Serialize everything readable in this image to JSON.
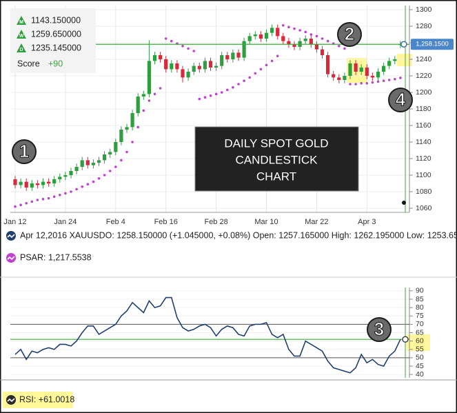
{
  "chart_data": [
    {
      "type": "candlestick",
      "categories": [
        "Jan 12",
        null,
        null,
        null,
        null,
        null,
        null,
        null,
        null,
        "Jan 24",
        null,
        null,
        null,
        null,
        null,
        null,
        null,
        null,
        "Feb 4",
        null,
        null,
        null,
        null,
        null,
        null,
        null,
        null,
        "Feb 16",
        null,
        null,
        null,
        null,
        null,
        null,
        null,
        null,
        "Feb 28",
        null,
        null,
        null,
        null,
        null,
        null,
        null,
        null,
        "Mar 10",
        null,
        null,
        null,
        null,
        null,
        null,
        null,
        null,
        "Mar 22",
        null,
        null,
        null,
        null,
        null,
        null,
        null,
        null,
        "Apr 3",
        null,
        null,
        null,
        null,
        null,
        null
      ],
      "open": [
        1095,
        1088,
        1092,
        1085,
        1090,
        1088,
        1092,
        1090,
        1095,
        1098,
        1100,
        1105,
        1110,
        1118,
        1112,
        1115,
        1118,
        1125,
        1128,
        1140,
        1155,
        1158,
        1175,
        1195,
        1198,
        1238,
        1245,
        1240,
        1228,
        1235,
        1228,
        1218,
        1225,
        1232,
        1228,
        1238,
        1230,
        1232,
        1245,
        1240,
        1248,
        1242,
        1262,
        1268,
        1270,
        1265,
        1272,
        1278,
        1268,
        1262,
        1258,
        1255,
        1262,
        1265,
        1258,
        1252,
        1245,
        1222,
        1218,
        1215,
        1220,
        1235,
        1225,
        1230,
        1220,
        1218,
        1225,
        1232,
        1238,
        1257.165
      ],
      "high": [
        1099,
        1096,
        1096,
        1094,
        1094,
        1096,
        1096,
        1099,
        1102,
        1104,
        1109,
        1114,
        1122,
        1122,
        1119,
        1122,
        1129,
        1132,
        1144,
        1159,
        1162,
        1179,
        1199,
        1202,
        1263,
        1249,
        1249,
        1244,
        1239,
        1239,
        1232,
        1229,
        1236,
        1236,
        1242,
        1242,
        1236,
        1249,
        1249,
        1252,
        1252,
        1266,
        1272,
        1274,
        1274,
        1276,
        1282,
        1282,
        1272,
        1266,
        1262,
        1266,
        1269,
        1269,
        1262,
        1256,
        1249,
        1226,
        1222,
        1224,
        1239,
        1239,
        1234,
        1234,
        1224,
        1229,
        1236,
        1242,
        1244,
        1262.195
      ],
      "low": [
        1084,
        1084,
        1081,
        1081,
        1084,
        1084,
        1086,
        1086,
        1091,
        1094,
        1096,
        1101,
        1106,
        1108,
        1108,
        1111,
        1114,
        1121,
        1124,
        1136,
        1151,
        1154,
        1171,
        1191,
        1194,
        1234,
        1236,
        1224,
        1224,
        1224,
        1212,
        1214,
        1221,
        1224,
        1224,
        1226,
        1226,
        1228,
        1236,
        1236,
        1238,
        1238,
        1258,
        1264,
        1261,
        1261,
        1268,
        1264,
        1258,
        1254,
        1251,
        1251,
        1258,
        1254,
        1248,
        1241,
        1218,
        1214,
        1211,
        1211,
        1216,
        1221,
        1221,
        1216,
        1214,
        1214,
        1221,
        1228,
        1234,
        1253.65
      ],
      "close": [
        1088,
        1092,
        1085,
        1090,
        1088,
        1092,
        1090,
        1095,
        1098,
        1100,
        1105,
        1110,
        1118,
        1112,
        1115,
        1118,
        1125,
        1128,
        1140,
        1155,
        1158,
        1175,
        1195,
        1198,
        1238,
        1245,
        1240,
        1228,
        1235,
        1228,
        1218,
        1225,
        1232,
        1228,
        1238,
        1230,
        1232,
        1245,
        1240,
        1248,
        1242,
        1262,
        1268,
        1270,
        1265,
        1272,
        1278,
        1268,
        1262,
        1258,
        1255,
        1262,
        1265,
        1258,
        1252,
        1245,
        1222,
        1218,
        1215,
        1220,
        1235,
        1225,
        1230,
        1220,
        1218,
        1225,
        1232,
        1238,
        1240,
        1258.15
      ],
      "up_color": "#2e9e3e",
      "down_color": "#d42a3c",
      "psar": {
        "color": "#c040d0",
        "values": [
          1062,
          1064,
          1066,
          1068,
          1070,
          1071,
          1072,
          1074,
          1076,
          1078,
          1080,
          1083,
          1086,
          1089,
          1092,
          1096,
          1100,
          1105,
          1110,
          1118,
          1128,
          1140,
          1158,
          1178,
          1190,
          1198,
          1205,
          1265,
          1262,
          1259,
          1256,
          1253,
          1250,
          1192,
          1194,
          1196,
          1198,
          1200,
          1203,
          1206,
          1210,
          1214,
          1218,
          1223,
          1228,
          1233,
          1238,
          1244,
          1281,
          1279,
          1277,
          1275,
          1273,
          1270,
          1268,
          1265,
          1262,
          1259,
          1256,
          1253,
          1210,
          1210,
          1211,
          1211,
          1212,
          1213,
          1214,
          1215,
          1216,
          1217.55
        ]
      },
      "last_label": "1,258.1500",
      "ylim": [
        1055,
        1305
      ],
      "yticks": [
        1060,
        1080,
        1100,
        1120,
        1140,
        1160,
        1180,
        1200,
        1220,
        1240,
        1260,
        1280,
        1300
      ],
      "grid": true,
      "title_lines": [
        "DAILY SPOT GOLD",
        "CANDLESTICK",
        "CHART"
      ],
      "info_box": {
        "rows": [
          "1143.150000",
          "1259.650000",
          "1235.145000"
        ],
        "row_icons": [
          "M",
          "W",
          "D"
        ],
        "score_label": "Score",
        "score": "+90"
      },
      "legend": [
        "Apr 12,2016 XAUUSDO: 1258.150000 (+1.045000, +0.08%) Open: 1257.165000 High: 1262.195000 Low: 1253.650",
        "PSAR: 1,217.5538"
      ],
      "annotations": [
        "1",
        "2",
        "4"
      ]
    },
    {
      "type": "line",
      "values": [
        52,
        55,
        49,
        54,
        53,
        55,
        56,
        55,
        58,
        58,
        57,
        60,
        65,
        69,
        69,
        64,
        66,
        68,
        70,
        75,
        78,
        83,
        80,
        77,
        84,
        80,
        81,
        86,
        86,
        74,
        68,
        66,
        67,
        69,
        70,
        68,
        63,
        67,
        69,
        68,
        64,
        63,
        69,
        70,
        70,
        71,
        64,
        62,
        64,
        55,
        51,
        51,
        60,
        58,
        56,
        54,
        48,
        44,
        43,
        42,
        41,
        44,
        52,
        47,
        49,
        46,
        45,
        51,
        54,
        61.0018
      ],
      "color": "#1f3f6e",
      "ylim": [
        38,
        92
      ],
      "yticks": [
        40,
        45,
        50,
        55,
        60,
        65,
        70,
        75,
        80,
        85,
        90
      ],
      "hlines": [
        70,
        50
      ],
      "legend": "RSI: +61.0018",
      "annotations": [
        "3"
      ]
    }
  ]
}
